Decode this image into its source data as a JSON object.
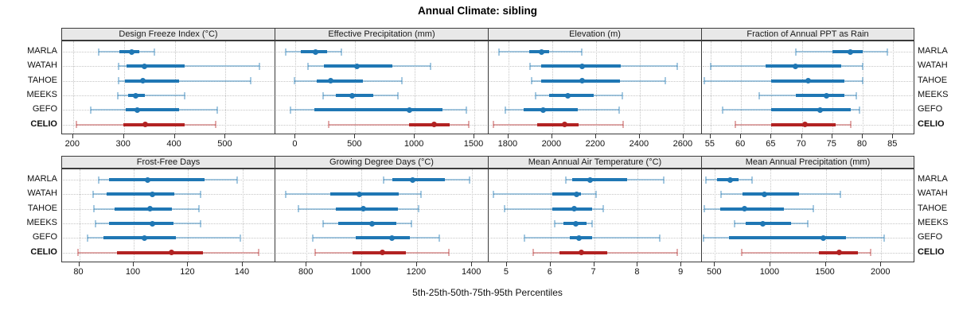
{
  "title": "Annual Climate: sibling",
  "footer": "5th-25th-50th-75th-95th Percentiles",
  "sites": [
    "MARLA",
    "WATAH",
    "TAHOE",
    "MEEKS",
    "GEFO",
    "CELIO"
  ],
  "highlight_site": "CELIO",
  "percentiles": [
    5,
    25,
    50,
    75,
    95
  ],
  "colors": {
    "series_blue": "#1F77B4",
    "series_blue_light": "rgba(31,119,180,0.40)",
    "highlight_red": "#B22222",
    "highlight_red_light": "rgba(178,34,34,0.38)",
    "strip_bg": "#E8E8E8",
    "panel_border": "#3a3a3a",
    "grid": "#c6c6c6"
  },
  "chart_data": [
    {
      "type": "interval-dotplot",
      "title": "Design Freeze Index (°C)",
      "xlim": [
        180,
        598
      ],
      "ticks": [
        200,
        300,
        400,
        500
      ],
      "series": [
        {
          "name": "MARLA",
          "values": [
            250,
            291,
            315,
            330,
            360
          ]
        },
        {
          "name": "WATAH",
          "values": [
            290,
            305,
            341,
            420,
            567
          ]
        },
        {
          "name": "TAHOE",
          "values": [
            290,
            302,
            338,
            408,
            550
          ]
        },
        {
          "name": "MEEKS",
          "values": [
            288,
            308,
            324,
            342,
            420
          ]
        },
        {
          "name": "GEFO",
          "values": [
            235,
            304,
            326,
            408,
            483
          ]
        },
        {
          "name": "CELIO",
          "values": [
            207,
            299,
            342,
            419,
            480
          ]
        }
      ]
    },
    {
      "type": "interval-dotplot",
      "title": "Effective Precipitation (mm)",
      "xlim": [
        -163,
        1620
      ],
      "ticks": [
        0,
        500,
        1000,
        1500
      ],
      "series": [
        {
          "name": "MARLA",
          "values": [
            -85,
            45,
            165,
            265,
            385
          ]
        },
        {
          "name": "WATAH",
          "values": [
            105,
            235,
            515,
            810,
            1135
          ]
        },
        {
          "name": "TAHOE",
          "values": [
            -10,
            178,
            293,
            565,
            890
          ]
        },
        {
          "name": "MEEKS",
          "values": [
            230,
            340,
            478,
            650,
            860
          ]
        },
        {
          "name": "GEFO",
          "values": [
            -40,
            155,
            955,
            1230,
            1430
          ]
        },
        {
          "name": "CELIO",
          "values": [
            280,
            955,
            1165,
            1290,
            1450
          ]
        }
      ]
    },
    {
      "type": "interval-dotplot",
      "title": "Elevation (m)",
      "xlim": [
        1713,
        2684
      ],
      "ticks": [
        1800,
        2000,
        2200,
        2400,
        2600
      ],
      "series": [
        {
          "name": "MARLA",
          "values": [
            1755,
            1895,
            1950,
            1985,
            2135
          ]
        },
        {
          "name": "WATAH",
          "values": [
            1900,
            1950,
            2135,
            2313,
            2570
          ]
        },
        {
          "name": "TAHOE",
          "values": [
            1905,
            1950,
            2135,
            2310,
            2515
          ]
        },
        {
          "name": "MEEKS",
          "values": [
            1925,
            1985,
            2070,
            2190,
            2320
          ]
        },
        {
          "name": "GEFO",
          "values": [
            1785,
            1870,
            1960,
            2115,
            2305
          ]
        },
        {
          "name": "CELIO",
          "values": [
            1730,
            1930,
            2055,
            2120,
            2325
          ]
        }
      ]
    },
    {
      "type": "interval-dotplot",
      "title": "Fraction of Annual PPT as Rain",
      "xlim": [
        53.7,
        88.5
      ],
      "ticks": [
        55,
        60,
        65,
        70,
        75,
        80,
        85
      ],
      "series": [
        {
          "name": "MARLA",
          "values": [
            69,
            75,
            78,
            80,
            84
          ]
        },
        {
          "name": "WATAH",
          "values": [
            55,
            64,
            69,
            76.5,
            80
          ]
        },
        {
          "name": "TAHOE",
          "values": [
            54,
            65,
            71,
            77,
            80
          ]
        },
        {
          "name": "MEEKS",
          "values": [
            63,
            69,
            74,
            77,
            79
          ]
        },
        {
          "name": "GEFO",
          "values": [
            57,
            65,
            73,
            78,
            79.5
          ]
        },
        {
          "name": "CELIO",
          "values": [
            59,
            65,
            70.5,
            75.5,
            78
          ]
        }
      ]
    },
    {
      "type": "interval-dotplot",
      "title": "Frost-Free Days",
      "xlim": [
        74,
        152
      ],
      "ticks": [
        80,
        100,
        120,
        140
      ],
      "series": [
        {
          "name": "MARLA",
          "values": [
            87,
            91,
            105,
            126,
            138
          ]
        },
        {
          "name": "WATAH",
          "values": [
            85,
            90,
            107,
            115,
            124.5
          ]
        },
        {
          "name": "TAHOE",
          "values": [
            85.5,
            93,
            106,
            114,
            124
          ]
        },
        {
          "name": "MEEKS",
          "values": [
            86,
            91,
            107,
            114.5,
            124.5
          ]
        },
        {
          "name": "GEFO",
          "values": [
            83,
            89,
            104,
            115.5,
            139
          ]
        },
        {
          "name": "CELIO",
          "values": [
            79.5,
            94,
            114,
            125.5,
            146
          ]
        }
      ]
    },
    {
      "type": "interval-dotplot",
      "title": "Growing Degree Days (°C)",
      "xlim": [
        690,
        1460
      ],
      "ticks": [
        800,
        1000,
        1200,
        1400
      ],
      "series": [
        {
          "name": "MARLA",
          "values": [
            1080,
            1110,
            1185,
            1300,
            1390
          ]
        },
        {
          "name": "WATAH",
          "values": [
            725,
            885,
            990,
            1135,
            1215
          ]
        },
        {
          "name": "TAHOE",
          "values": [
            770,
            905,
            1005,
            1130,
            1207
          ]
        },
        {
          "name": "MEEKS",
          "values": [
            860,
            915,
            1038,
            1125,
            1180
          ]
        },
        {
          "name": "GEFO",
          "values": [
            824,
            977,
            1109,
            1174,
            1280
          ]
        },
        {
          "name": "CELIO",
          "values": [
            830,
            968,
            1075,
            1160,
            1315
          ]
        }
      ]
    },
    {
      "type": "interval-dotplot",
      "title": "Mean Annual Air Temperature (°C)",
      "xlim": [
        4.6,
        9.47
      ],
      "ticks": [
        5,
        6,
        7,
        8,
        9
      ],
      "series": [
        {
          "name": "MARLA",
          "values": [
            6.35,
            6.5,
            6.9,
            7.75,
            8.6
          ]
        },
        {
          "name": "WATAH",
          "values": [
            4.7,
            6.05,
            6.6,
            6.7,
            7.05
          ]
        },
        {
          "name": "TAHOE",
          "values": [
            4.95,
            6.05,
            6.55,
            6.95,
            7.2
          ]
        },
        {
          "name": "MEEKS",
          "values": [
            6.1,
            6.3,
            6.57,
            6.83,
            6.95
          ]
        },
        {
          "name": "GEFO",
          "values": [
            5.4,
            6.45,
            6.65,
            6.95,
            8.5
          ]
        },
        {
          "name": "CELIO",
          "values": [
            5.6,
            6.2,
            6.7,
            7.3,
            8.9
          ]
        }
      ]
    },
    {
      "type": "interval-dotplot",
      "title": "Mean Annual Precipitation (mm)",
      "xlim": [
        390,
        2300
      ],
      "ticks": [
        500,
        1000,
        1500,
        2000
      ],
      "series": [
        {
          "name": "MARLA",
          "values": [
            420,
            520,
            640,
            710,
            835
          ]
        },
        {
          "name": "WATAH",
          "values": [
            555,
            750,
            950,
            1260,
            1630
          ]
        },
        {
          "name": "TAHOE",
          "values": [
            405,
            550,
            765,
            1125,
            1385
          ]
        },
        {
          "name": "MEEKS",
          "values": [
            675,
            780,
            935,
            1185,
            1340
          ]
        },
        {
          "name": "GEFO",
          "values": [
            395,
            625,
            1475,
            1685,
            2030
          ]
        },
        {
          "name": "CELIO",
          "values": [
            745,
            1435,
            1625,
            1790,
            1905
          ]
        }
      ]
    }
  ]
}
